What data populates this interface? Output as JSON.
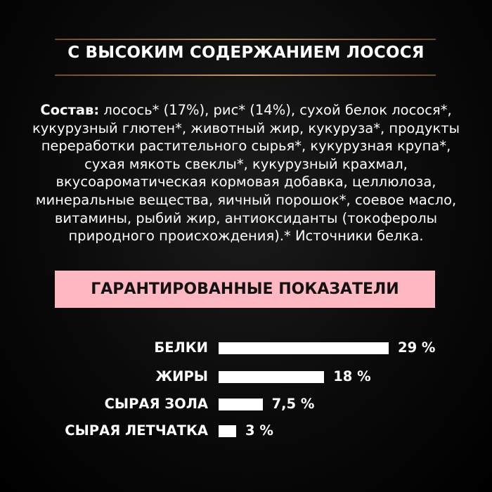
{
  "headline": "С ВЫСОКИМ СОДЕРЖАНИЕМ ЛОСОСЯ",
  "composition": {
    "label": "Состав:",
    "lines": [
      " лосось* (17%), рис* (14%), сухой белок лосося*,",
      "кукурузный глютен*, животный жир, кукуруза*, продукты",
      "переработки растительного сырья*, кукурузная крупа*,",
      "сухая мякоть свеклы*, кукурузный крахмал,",
      "вкусоароматическая кормовая добавка, целлюлоза,",
      "минеральные вещества, яичный порошок*, соевое масло,",
      "витамины, рыбий жир, антиоксиданты (токоферолы",
      "природного происхождения).* Источники белка."
    ]
  },
  "guaranteed_title": "ГАРАНТИРОВАННЫЕ ПОКАЗАТЕЛИ",
  "colors": {
    "accent_pink": "#fdb8c2",
    "rule_gold": "#c99a68",
    "background": "#0a0a0a"
  },
  "chart_data": {
    "type": "bar",
    "orientation": "horizontal",
    "categories": [
      "БЕЛКИ",
      "ЖИРЫ",
      "СЫРАЯ ЗОЛА",
      "СЫРАЯ ЛЕТЧАТКА"
    ],
    "values": [
      29,
      18,
      7.5,
      3
    ],
    "value_labels": [
      "29 %",
      "18 %",
      "7,5 %",
      "3 %"
    ],
    "unit": "%"
  }
}
